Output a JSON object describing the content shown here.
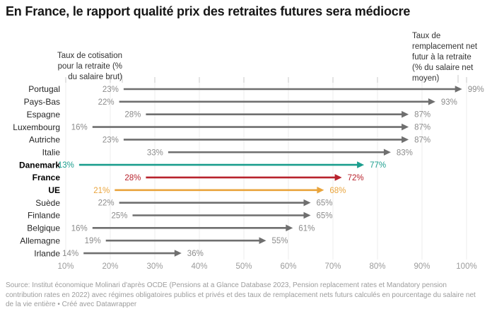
{
  "title": "En France, le rapport qualité prix des retraites futures sera médiocre",
  "footer": "Source: Institut économique Molinari d'après OCDE (Pensions at a Glance Database 2023, Pension replacement rates et Mandatory pension contribution rates en 2022) avec régimes obligatoires publics et privés et des taux de remplacement nets futurs calculés en pourcentage du salaire net de la vie entière • Créé avec Datawrapper",
  "chart_data": {
    "type": "arrow",
    "title": "En France, le rapport qualité prix des retraites futures sera médiocre",
    "x_axis": {
      "min": 10,
      "max": 100,
      "tick_values": [
        10,
        20,
        30,
        40,
        50,
        60,
        70,
        80,
        90,
        100
      ],
      "tick_labels": [
        "10%",
        "20%",
        "30%",
        "40%",
        "50%",
        "60%",
        "70%",
        "80%",
        "90%",
        "100%"
      ],
      "grid": true
    },
    "annotation_left": {
      "lines": [
        "Taux de cotisation",
        "pour la retraite (%",
        "du salaire brut)"
      ]
    },
    "annotation_right": {
      "lines": [
        "Taux de",
        "remplacement net",
        "futur à la retraite",
        "(% du salaire net",
        "moyen)"
      ]
    },
    "value_suffix": "%",
    "rows": [
      {
        "country": "Portugal",
        "start": 23,
        "end": 99,
        "color": "grey",
        "bold": false
      },
      {
        "country": "Pays-Bas",
        "start": 22,
        "end": 93,
        "color": "grey",
        "bold": false
      },
      {
        "country": "Espagne",
        "start": 28,
        "end": 87,
        "color": "grey",
        "bold": false
      },
      {
        "country": "Luxembourg",
        "start": 16,
        "end": 87,
        "color": "grey",
        "bold": false
      },
      {
        "country": "Autriche",
        "start": 23,
        "end": 87,
        "color": "grey",
        "bold": false
      },
      {
        "country": "Italie",
        "start": 33,
        "end": 83,
        "color": "grey",
        "bold": false
      },
      {
        "country": "Danemark",
        "start": 13,
        "end": 77,
        "color": "teal",
        "bold": true
      },
      {
        "country": "France",
        "start": 28,
        "end": 72,
        "color": "red",
        "bold": true
      },
      {
        "country": "UE",
        "start": 21,
        "end": 68,
        "color": "orange",
        "bold": true
      },
      {
        "country": "Suède",
        "start": 22,
        "end": 65,
        "color": "grey",
        "bold": false
      },
      {
        "country": "Finlande",
        "start": 25,
        "end": 65,
        "color": "grey",
        "bold": false
      },
      {
        "country": "Belgique",
        "start": 16,
        "end": 61,
        "color": "grey",
        "bold": false
      },
      {
        "country": "Allemagne",
        "start": 19,
        "end": 55,
        "color": "grey",
        "bold": false
      },
      {
        "country": "Irlande",
        "start": 14,
        "end": 36,
        "color": "grey",
        "bold": false
      }
    ],
    "colors": {
      "grey": "#6f6f6f",
      "teal": "#1b9e8e",
      "red": "#b8232d",
      "orange": "#e9a43c",
      "grey_value_label": "#8c8c8c",
      "gridline": "#ededed",
      "axis_text": "#9b9b9b",
      "annotation_text": "#333333"
    }
  }
}
